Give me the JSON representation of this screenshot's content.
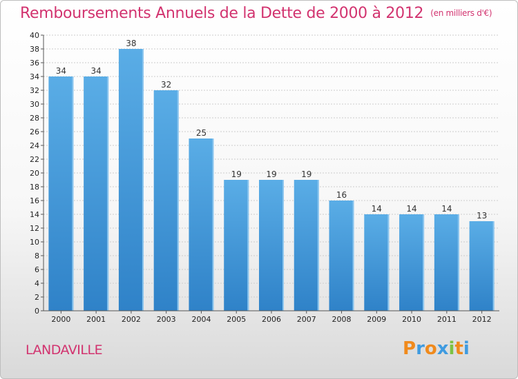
{
  "title": "Remboursements Annuels de la Dette de 2000 à 2012",
  "unit": "(en milliers d'€)",
  "commune": "LANDAVILLE",
  "logo": {
    "letters": [
      "P",
      "r",
      "o",
      "x",
      "i",
      "t",
      "i"
    ],
    "colors": [
      "#f08a1c",
      "#3f9be0",
      "#f08a1c",
      "#3f9be0",
      "#7cc243",
      "#f08a1c",
      "#3f9be0"
    ]
  },
  "colors": {
    "title": "#d2336f",
    "bar_top": "#5aade6",
    "bar_bottom": "#2f82c8",
    "axis": "#555555",
    "grid": "#cccccc"
  },
  "chart_data": {
    "type": "bar",
    "title": "Remboursements Annuels de la Dette de 2000 à 2012",
    "subtitle": "(en milliers d'€)",
    "xlabel": "",
    "ylabel": "",
    "categories": [
      "2000",
      "2001",
      "2002",
      "2003",
      "2004",
      "2005",
      "2006",
      "2007",
      "2008",
      "2009",
      "2010",
      "2011",
      "2012"
    ],
    "values": [
      34,
      34,
      38,
      32,
      25,
      19,
      19,
      19,
      16,
      14,
      14,
      14,
      13
    ],
    "ylim": [
      0,
      40
    ],
    "yticks": [
      0,
      2,
      4,
      6,
      8,
      10,
      12,
      14,
      16,
      18,
      20,
      22,
      24,
      26,
      28,
      30,
      32,
      34,
      36,
      38,
      40
    ],
    "grid": true,
    "legend": "none"
  }
}
